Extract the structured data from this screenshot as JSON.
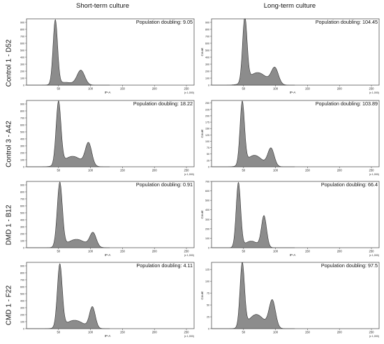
{
  "column_titles": [
    "Short-term culture",
    "Long-term culture"
  ],
  "row_labels": [
    "Control 1 - D52",
    "Control 3 - A42",
    "DMD 1 - B12",
    "CMD 1 - F22"
  ],
  "colors": {
    "fill": "#8c8c8c",
    "stroke": "#333333",
    "frame": "#555555"
  },
  "chart_data": [
    {
      "type": "area",
      "panel": "Control 1 - D52 / Short-term culture",
      "annotation": "Population doubling: 9.05",
      "xlabel": "IP-A",
      "xunit": "(x 1,000)",
      "ylabel": "",
      "xlim": [
        0,
        262
      ],
      "ylim": [
        0,
        950
      ],
      "xticks": [
        50,
        100,
        150,
        200,
        250
      ],
      "yticks": [
        0,
        100,
        200,
        300,
        400,
        500,
        600,
        700,
        800,
        900
      ],
      "peaks": [
        {
          "center": 45,
          "height": 920,
          "width": 3.5
        },
        {
          "center": 85,
          "height": 210,
          "width": 6
        },
        {
          "center": 60,
          "height": 40,
          "width": 12
        }
      ]
    },
    {
      "type": "area",
      "panel": "Control 1 - D52 / Long-term culture",
      "annotation": "Population doubling: 104.45",
      "xlabel": "IP-A",
      "xunit": "(x 1,000)",
      "ylabel": "Count",
      "xlim": [
        0,
        262
      ],
      "ylim": [
        0,
        950
      ],
      "xticks": [
        50,
        100,
        150,
        200,
        250
      ],
      "yticks": [
        0,
        100,
        200,
        300,
        400,
        500,
        600,
        700,
        800,
        900
      ],
      "peaks": [
        {
          "center": 52,
          "height": 920,
          "width": 3.5
        },
        {
          "center": 99,
          "height": 230,
          "width": 5.5
        },
        {
          "center": 72,
          "height": 180,
          "width": 14
        }
      ]
    },
    {
      "type": "area",
      "panel": "Control 3 - A42 / Short-term culture",
      "annotation": "Population doubling: 18.22",
      "xlabel": "",
      "xunit": "(x 1,000)",
      "ylabel": "",
      "xlim": [
        0,
        262
      ],
      "ylim": [
        0,
        950
      ],
      "xticks": [
        50,
        100,
        150,
        200,
        250
      ],
      "yticks": [
        0,
        100,
        200,
        300,
        400,
        500,
        600,
        700,
        800,
        900
      ],
      "peaks": [
        {
          "center": 50,
          "height": 900,
          "width": 3.8
        },
        {
          "center": 97,
          "height": 320,
          "width": 5
        },
        {
          "center": 72,
          "height": 150,
          "width": 14
        }
      ]
    },
    {
      "type": "area",
      "panel": "Control 3 - A42 / Long-term culture",
      "annotation": "Population doubling: 103.89",
      "xlabel": "",
      "xunit": "(x 1,000)",
      "ylabel": "Count",
      "xlim": [
        0,
        262
      ],
      "ylim": [
        0,
        260
      ],
      "xticks": [
        50,
        100,
        150,
        200,
        250
      ],
      "yticks": [
        0,
        25,
        50,
        75,
        100,
        125,
        150,
        175,
        200,
        225,
        250
      ],
      "peaks": [
        {
          "center": 48,
          "height": 245,
          "width": 3.5
        },
        {
          "center": 93,
          "height": 70,
          "width": 5
        },
        {
          "center": 67,
          "height": 45,
          "width": 12
        }
      ]
    },
    {
      "type": "area",
      "panel": "DMD 1 - B12 / Short-term culture",
      "annotation": "Population doubling: 0.91",
      "xlabel": "IP-A",
      "xunit": "(x 1,000)",
      "ylabel": "",
      "xlim": [
        0,
        262
      ],
      "ylim": [
        0,
        950
      ],
      "xticks": [
        50,
        100,
        150,
        200,
        250
      ],
      "yticks": [
        0,
        100,
        200,
        300,
        400,
        500,
        600,
        700,
        800,
        900
      ],
      "peaks": [
        {
          "center": 52,
          "height": 920,
          "width": 4
        },
        {
          "center": 104,
          "height": 200,
          "width": 5
        },
        {
          "center": 78,
          "height": 120,
          "width": 14
        }
      ]
    },
    {
      "type": "area",
      "panel": "DMD 1 - B12 / Long-term culture",
      "annotation": "Population doubling: 66.4",
      "xlabel": "IP-A",
      "xunit": "(x 1,000)",
      "ylabel": "Count",
      "xlim": [
        0,
        262
      ],
      "ylim": [
        0,
        700
      ],
      "xticks": [
        50,
        100,
        150,
        200,
        250
      ],
      "yticks": [
        0,
        100,
        200,
        300,
        400,
        500,
        600,
        700
      ],
      "peaks": [
        {
          "center": 42,
          "height": 680,
          "width": 3.5
        },
        {
          "center": 82,
          "height": 330,
          "width": 4
        },
        {
          "center": 62,
          "height": 70,
          "width": 10
        }
      ]
    },
    {
      "type": "area",
      "panel": "CMD 1 - F22 / Short-term culture",
      "annotation": "Population doubling: 4.11",
      "xlabel": "IP-A",
      "xunit": "(x 1,000)",
      "ylabel": "",
      "xlim": [
        0,
        262
      ],
      "ylim": [
        0,
        950
      ],
      "xticks": [
        50,
        100,
        150,
        200,
        250
      ],
      "yticks": [
        0,
        100,
        200,
        300,
        400,
        500,
        600,
        700,
        800,
        900
      ],
      "peaks": [
        {
          "center": 52,
          "height": 900,
          "width": 3.8
        },
        {
          "center": 103,
          "height": 300,
          "width": 4.5
        },
        {
          "center": 75,
          "height": 120,
          "width": 14
        }
      ]
    },
    {
      "type": "area",
      "panel": "CMD 1 - F22 / Long-term culture",
      "annotation": "Population doubling: 97.5",
      "xlabel": "",
      "xunit": "(x 1,000)",
      "ylabel": "Count",
      "xlim": [
        0,
        262
      ],
      "ylim": [
        0,
        140
      ],
      "xticks": [
        50,
        100,
        150,
        200,
        250
      ],
      "yticks": [
        0,
        25,
        50,
        75,
        100,
        125
      ],
      "peaks": [
        {
          "center": 48,
          "height": 135,
          "width": 3.5
        },
        {
          "center": 95,
          "height": 58,
          "width": 5
        },
        {
          "center": 70,
          "height": 30,
          "width": 12
        }
      ]
    }
  ]
}
